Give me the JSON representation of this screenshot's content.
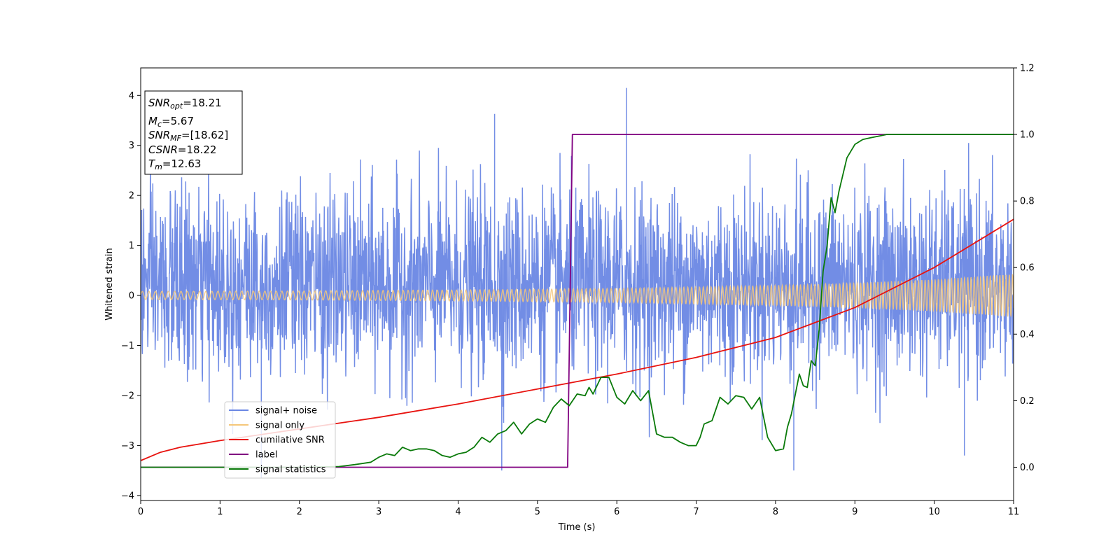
{
  "chart_data": {
    "type": "line",
    "title": "",
    "xlabel": "Time (s)",
    "ylabel": "Whitened strain",
    "xlim": [
      0,
      11
    ],
    "ylim": [
      -4.1,
      4.55
    ],
    "y2lim": [
      -0.1,
      1.2
    ],
    "xticks": [
      "0",
      "1",
      "2",
      "3",
      "4",
      "5",
      "6",
      "7",
      "8",
      "9",
      "10",
      "11"
    ],
    "yticks": [
      "−4",
      "−3",
      "−2",
      "−1",
      "0",
      "1",
      "2",
      "3",
      "4"
    ],
    "y2ticks": [
      "0.0",
      "0.2",
      "0.4",
      "0.6",
      "0.8",
      "1.0",
      "1.2"
    ],
    "grid": false,
    "legend_position": "lower-left",
    "colors": {
      "signal_noise": "#6a87e4",
      "signal_only": "#f5c77a",
      "cumulative_snr": "#e8130f",
      "label": "#800080",
      "signal_statistics": "#0a7a0a"
    },
    "series": [
      {
        "name": "signal+ noise",
        "axis": "left",
        "style": "noise band",
        "envelope_x": [
          0,
          11
        ],
        "typical_range": [
          -1.5,
          2.0
        ],
        "outliers": [
          [
            1.52,
            -3.65
          ],
          [
            4.46,
            3.63
          ],
          [
            4.55,
            -3.5
          ],
          [
            6.12,
            4.15
          ],
          [
            8.23,
            -3.5
          ],
          [
            10.38,
            -3.2
          ]
        ]
      },
      {
        "name": "signal only",
        "axis": "left",
        "style": "chirp",
        "x": [
          0,
          2,
          4,
          6,
          8,
          9,
          10,
          11
        ],
        "amplitude": [
          0.08,
          0.09,
          0.11,
          0.14,
          0.2,
          0.25,
          0.32,
          0.43
        ]
      },
      {
        "name": "cumilative SNR",
        "axis": "right",
        "x": [
          0,
          0.25,
          0.5,
          1,
          2,
          3,
          4,
          5,
          6,
          7,
          8,
          9,
          10,
          11
        ],
        "y": [
          0.02,
          0.045,
          0.06,
          0.08,
          0.115,
          0.15,
          0.19,
          0.235,
          0.28,
          0.33,
          0.39,
          0.48,
          0.6,
          0.745
        ]
      },
      {
        "name": "label",
        "axis": "right",
        "x": [
          0,
          5.38,
          5.44,
          11
        ],
        "y": [
          0,
          0,
          1,
          1
        ]
      },
      {
        "name": "signal statistics",
        "axis": "right",
        "x": [
          0,
          0.5,
          1,
          1.5,
          2,
          2.5,
          2.7,
          2.9,
          3.0,
          3.1,
          3.2,
          3.3,
          3.4,
          3.5,
          3.6,
          3.7,
          3.8,
          3.9,
          4.0,
          4.1,
          4.2,
          4.3,
          4.4,
          4.5,
          4.6,
          4.7,
          4.8,
          4.9,
          5.0,
          5.1,
          5.2,
          5.3,
          5.4,
          5.5,
          5.6,
          5.65,
          5.7,
          5.8,
          5.9,
          6.0,
          6.1,
          6.2,
          6.3,
          6.4,
          6.5,
          6.6,
          6.7,
          6.8,
          6.9,
          7.0,
          7.05,
          7.1,
          7.2,
          7.3,
          7.4,
          7.5,
          7.6,
          7.7,
          7.8,
          7.9,
          8.0,
          8.1,
          8.15,
          8.2,
          8.3,
          8.35,
          8.4,
          8.45,
          8.5,
          8.55,
          8.6,
          8.65,
          8.7,
          8.75,
          8.8,
          8.9,
          9.0,
          9.1,
          9.2,
          9.3,
          9.4,
          9.5,
          10.0,
          10.5,
          11.0
        ],
        "y": [
          0.0,
          0.0,
          0.0,
          0.0,
          0.0,
          0.002,
          0.008,
          0.015,
          0.03,
          0.04,
          0.035,
          0.06,
          0.05,
          0.055,
          0.055,
          0.05,
          0.035,
          0.03,
          0.04,
          0.045,
          0.06,
          0.09,
          0.075,
          0.1,
          0.11,
          0.135,
          0.1,
          0.13,
          0.145,
          0.135,
          0.18,
          0.205,
          0.185,
          0.22,
          0.215,
          0.24,
          0.22,
          0.27,
          0.27,
          0.21,
          0.19,
          0.23,
          0.2,
          0.23,
          0.1,
          0.09,
          0.09,
          0.075,
          0.065,
          0.065,
          0.09,
          0.13,
          0.14,
          0.21,
          0.19,
          0.215,
          0.21,
          0.175,
          0.21,
          0.09,
          0.05,
          0.055,
          0.12,
          0.16,
          0.28,
          0.245,
          0.24,
          0.32,
          0.305,
          0.415,
          0.59,
          0.665,
          0.81,
          0.765,
          0.83,
          0.93,
          0.97,
          0.985,
          0.99,
          0.995,
          1.0,
          1.0,
          1.0,
          1.0,
          1.0
        ]
      }
    ],
    "annotation": {
      "lines": [
        {
          "var": "SNR",
          "sub": "opt",
          "value": "=18.21"
        },
        {
          "var": "M",
          "sub": "c",
          "value": "=5.67"
        },
        {
          "var": "SNR",
          "sub": "MF",
          "value": "=[18.62]"
        },
        {
          "var": "CSNR",
          "sub": "",
          "value": "=18.22"
        },
        {
          "var": "T",
          "sub": "m",
          "value": "=12.63"
        }
      ]
    }
  }
}
